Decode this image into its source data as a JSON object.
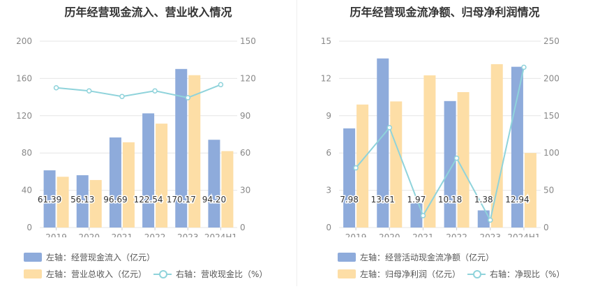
{
  "chart_data": [
    {
      "type": "bar",
      "title": "历年经营现金流入、营业收入情况",
      "categories": [
        "2019",
        "2020",
        "2021",
        "2022",
        "2023",
        "2024H1"
      ],
      "left_axis": {
        "ticks": [
          "0",
          "40",
          "80",
          "120",
          "160",
          "200"
        ],
        "min": 0,
        "max": 200
      },
      "right_axis": {
        "ticks": [
          "0",
          "30",
          "60",
          "90",
          "120",
          "150"
        ],
        "min": 0,
        "max": 150
      },
      "series": [
        {
          "name": "左轴：经营现金流入（亿元）",
          "axis": "left",
          "kind": "bar",
          "color": "#8eabdb",
          "values": [
            61.39,
            56.13,
            96.69,
            122.54,
            170.17,
            94.2
          ],
          "labels": [
            "61.39",
            "56.13",
            "96.69",
            "122.54",
            "170.17",
            "94.20"
          ]
        },
        {
          "name": "左轴：营业总收入（亿元）",
          "axis": "left",
          "kind": "bar",
          "color": "#fddea6",
          "values": [
            54.5,
            51.0,
            91.5,
            111.5,
            163.5,
            82.0
          ]
        },
        {
          "name": "右轴：营收现金比（%）",
          "axis": "right",
          "kind": "line",
          "color": "#8fd3db",
          "values": [
            112.5,
            110.0,
            105.5,
            110.0,
            104.5,
            115.0
          ]
        }
      ],
      "grid": true
    },
    {
      "type": "bar",
      "title": "历年经营现金流净额、归母净利润情况",
      "categories": [
        "2019",
        "2020",
        "2021",
        "2022",
        "2023",
        "2024H1"
      ],
      "left_axis": {
        "ticks": [
          "0",
          "3",
          "6",
          "9",
          "12",
          "15"
        ],
        "min": 0,
        "max": 15
      },
      "right_axis": {
        "ticks": [
          "0",
          "50",
          "100",
          "150",
          "200",
          "250"
        ],
        "min": 0,
        "max": 250
      },
      "series": [
        {
          "name": "左轴：经营活动现金流净额（亿元）",
          "axis": "left",
          "kind": "bar",
          "color": "#8eabdb",
          "values": [
            7.98,
            13.61,
            1.97,
            10.18,
            1.38,
            12.94
          ],
          "labels": [
            "7.98",
            "13.61",
            "1.97",
            "10.18",
            "1.38",
            "12.94"
          ]
        },
        {
          "name": "左轴：归母净利润（亿元）",
          "axis": "left",
          "kind": "bar",
          "color": "#fddea6",
          "values": [
            9.9,
            10.15,
            12.25,
            10.9,
            13.15,
            6.0
          ]
        },
        {
          "name": "右轴：净现比（%）",
          "axis": "right",
          "kind": "line",
          "color": "#8fd3db",
          "values": [
            80.0,
            134.0,
            16.0,
            93.0,
            10.0,
            215.0
          ]
        }
      ],
      "grid": true
    }
  ]
}
